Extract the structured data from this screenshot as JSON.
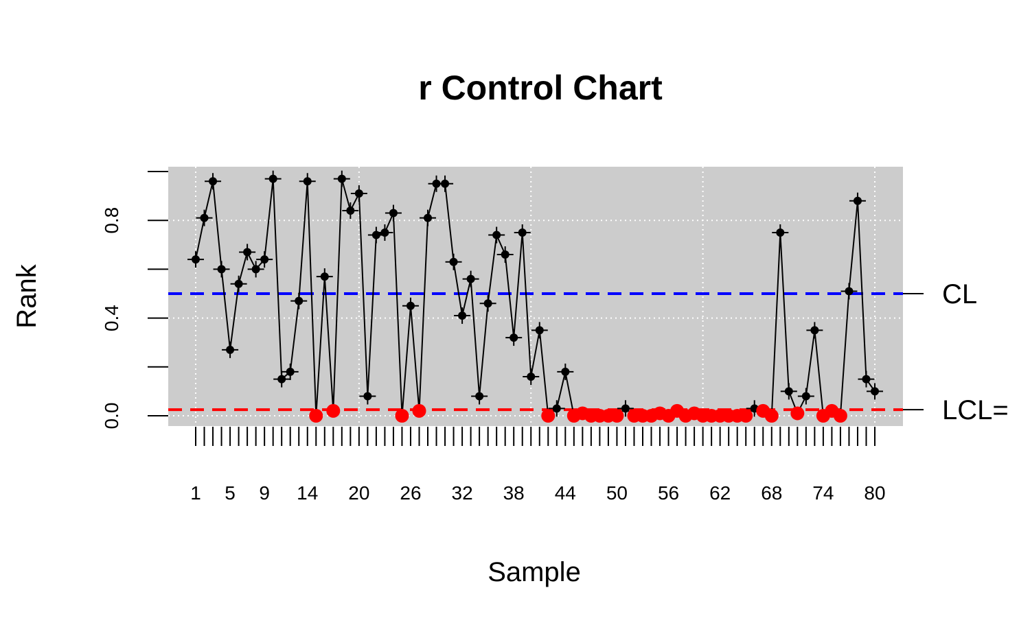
{
  "chart_data": {
    "type": "line",
    "title": "r Control Chart",
    "xlabel": "Sample",
    "ylabel": "Rank",
    "xlim": [
      1,
      80
    ],
    "ylim": [
      -0.04,
      1.0
    ],
    "x_tick_labels": [
      "1",
      "5",
      "9",
      "14",
      "20",
      "26",
      "32",
      "38",
      "44",
      "50",
      "56",
      "62",
      "68",
      "74",
      "80"
    ],
    "y_tick_labels": [
      "0.0",
      "0.4",
      "0.8"
    ],
    "grid": true,
    "background_color": "#cccccc",
    "series": [
      {
        "values": [
          0.64,
          0.81,
          0.96,
          0.6,
          0.27,
          0.54,
          0.67,
          0.6,
          0.64,
          0.97,
          0.15,
          0.18,
          0.47,
          0.96,
          0.0,
          0.57,
          0.02,
          0.97,
          0.84,
          0.91,
          0.08,
          0.74,
          0.75,
          0.83,
          0.0,
          0.45,
          0.02,
          0.81,
          0.95,
          0.95,
          0.63,
          0.41,
          0.56,
          0.08,
          0.46,
          0.74,
          0.66,
          0.32,
          0.75,
          0.16,
          0.35,
          0.0,
          0.03,
          0.18,
          0.0,
          0.01,
          0.0,
          0.0,
          0.0,
          0.0,
          0.03,
          0.0,
          0.0,
          0.0,
          0.01,
          0.0,
          0.02,
          0.0,
          0.01,
          0.0,
          0.0,
          0.0,
          0.0,
          0.0,
          0.0,
          0.03,
          0.02,
          0.0,
          0.75,
          0.1,
          0.01,
          0.08,
          0.35,
          0.0,
          0.02,
          0.0,
          0.51,
          0.88,
          0.15,
          0.1
        ]
      }
    ],
    "reference_lines": [
      {
        "label": "CL",
        "value": 0.5,
        "color": "#0000ff",
        "style": "dashed"
      },
      {
        "label": "LCL=",
        "value": 0.025,
        "color": "#ff0000",
        "style": "dashed"
      }
    ],
    "line_color": "#000000",
    "out_of_control_color": "#ff0000"
  }
}
